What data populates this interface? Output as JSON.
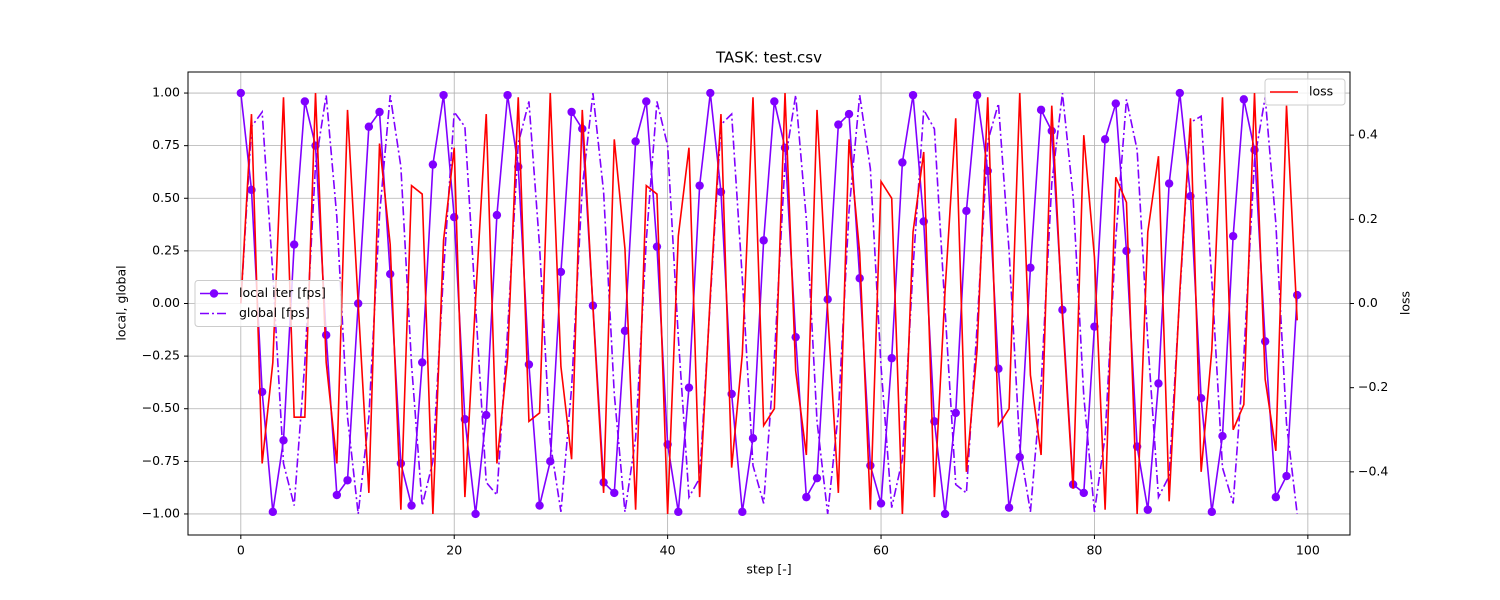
{
  "chart_data": {
    "type": "line",
    "title": "TASK: test.csv",
    "xlabel": "step [-]",
    "ylabel": "local, global",
    "y2label": "loss",
    "x": [
      0,
      1,
      2,
      3,
      4,
      5,
      6,
      7,
      8,
      9,
      10,
      11,
      12,
      13,
      14,
      15,
      16,
      17,
      18,
      19,
      20,
      21,
      22,
      23,
      24,
      25,
      26,
      27,
      28,
      29,
      30,
      31,
      32,
      33,
      34,
      35,
      36,
      37,
      38,
      39,
      40,
      41,
      42,
      43,
      44,
      45,
      46,
      47,
      48,
      49,
      50,
      51,
      52,
      53,
      54,
      55,
      56,
      57,
      58,
      59,
      60,
      61,
      62,
      63,
      64,
      65,
      66,
      67,
      68,
      69,
      70,
      71,
      72,
      73,
      74,
      75,
      76,
      77,
      78,
      79,
      80,
      81,
      82,
      83,
      84,
      85,
      86,
      87,
      88,
      89,
      90,
      91,
      92,
      93,
      94,
      95,
      96,
      97,
      98,
      99
    ],
    "series": [
      {
        "name": "local iter [fps]",
        "color": "#8000ff",
        "marker": "o",
        "linestyle": "solid",
        "values": [
          1,
          0.54,
          -0.42,
          -0.99,
          -0.65,
          0.28,
          0.96,
          0.75,
          -0.15,
          -0.91,
          -0.84,
          0,
          0.84,
          0.91,
          0.14,
          -0.76,
          -0.96,
          -0.28,
          0.66,
          0.99,
          0.41,
          -0.55,
          -1,
          -0.53,
          0.42,
          0.99,
          0.65,
          -0.29,
          -0.96,
          -0.75,
          0.15,
          0.91,
          0.83,
          -0.01,
          -0.85,
          -0.9,
          -0.13,
          0.77,
          0.96,
          0.27,
          -0.67,
          -0.99,
          -0.4,
          0.56,
          1,
          0.53,
          -0.43,
          -0.99,
          -0.64,
          0.3,
          0.96,
          0.74,
          -0.16,
          -0.92,
          -0.83,
          0.02,
          0.85,
          0.9,
          0.12,
          -0.77,
          -0.95,
          -0.26,
          0.67,
          0.99,
          0.39,
          -0.56,
          -1,
          -0.52,
          0.44,
          0.99,
          0.63,
          -0.31,
          -0.97,
          -0.73,
          0.17,
          0.92,
          0.82,
          -0.03,
          -0.86,
          -0.9,
          -0.11,
          0.78,
          0.95,
          0.25,
          -0.68,
          -0.98,
          -0.38,
          0.57,
          1,
          0.51,
          -0.45,
          -0.99,
          -0.63,
          0.32,
          0.97,
          0.73,
          -0.18,
          -0.92,
          -0.82,
          0.04
        ]
      },
      {
        "name": "global [fps]",
        "color": "#8000ff",
        "linestyle": "dashdot",
        "values": [
          0,
          0.84,
          0.91,
          0.14,
          -0.76,
          -0.96,
          -0.28,
          0.66,
          0.99,
          0.41,
          -0.54,
          -1,
          -0.54,
          0.42,
          0.99,
          0.65,
          -0.29,
          -0.96,
          -0.75,
          0.15,
          0.91,
          0.84,
          -0.01,
          -0.85,
          -0.91,
          -0.13,
          0.76,
          0.96,
          0.27,
          -0.66,
          -0.99,
          -0.4,
          0.55,
          1,
          0.53,
          -0.43,
          -0.99,
          -0.64,
          0.3,
          0.96,
          0.75,
          -0.16,
          -0.92,
          -0.83,
          0.02,
          0.85,
          0.9,
          0.12,
          -0.77,
          -0.95,
          -0.26,
          0.67,
          0.99,
          0.4,
          -0.56,
          -1,
          -0.52,
          0.44,
          0.99,
          0.64,
          -0.3,
          -0.97,
          -0.74,
          0.17,
          0.92,
          0.83,
          -0.03,
          -0.86,
          -0.9,
          -0.11,
          0.77,
          0.95,
          0.25,
          -0.68,
          -0.99,
          -0.39,
          0.57,
          1,
          0.51,
          -0.44,
          -0.99,
          -0.63,
          0.31,
          0.97,
          0.73,
          -0.18,
          -0.92,
          -0.82,
          0.04,
          0.86,
          0.89,
          0.11,
          -0.78,
          -0.95,
          -0.25,
          0.68,
          0.98,
          0.38,
          -0.57,
          -1
        ]
      },
      {
        "name": "loss",
        "color": "#ff0000",
        "linestyle": "solid",
        "axis": "y2",
        "values": [
          0,
          0.45,
          -0.38,
          -0.14,
          0.49,
          -0.27,
          -0.27,
          0.5,
          -0.14,
          -0.38,
          0.46,
          0,
          -0.45,
          0.38,
          0.14,
          -0.49,
          0.28,
          0.26,
          -0.5,
          0.15,
          0.37,
          -0.46,
          0.01,
          0.45,
          -0.38,
          -0.13,
          0.49,
          -0.28,
          -0.26,
          0.5,
          -0.15,
          -0.37,
          0.46,
          -0.01,
          -0.45,
          0.39,
          0.13,
          -0.49,
          0.28,
          0.26,
          -0.5,
          0.16,
          0.37,
          -0.46,
          0.02,
          0.45,
          -0.39,
          -0.12,
          0.49,
          -0.29,
          -0.25,
          0.5,
          -0.16,
          -0.36,
          0.46,
          -0.02,
          -0.45,
          0.39,
          0.12,
          -0.49,
          0.29,
          0.25,
          -0.5,
          0.17,
          0.36,
          -0.46,
          0.03,
          0.44,
          -0.4,
          -0.11,
          0.49,
          -0.29,
          -0.25,
          0.5,
          -0.17,
          -0.36,
          0.47,
          -0.03,
          -0.44,
          0.4,
          0.11,
          -0.49,
          0.3,
          0.24,
          -0.5,
          0.17,
          0.35,
          -0.47,
          0.03,
          0.44,
          -0.4,
          -0.11,
          0.49,
          -0.3,
          -0.24,
          0.5,
          -0.18,
          -0.35,
          0.47,
          -0.04
        ]
      }
    ],
    "xlim": [
      -4.95,
      103.95
    ],
    "xticks": [
      0,
      20,
      40,
      60,
      80,
      100
    ],
    "ylim": [
      -1.1,
      1.1
    ],
    "yticks": [
      {
        "value": -1,
        "label": "−1.00"
      },
      {
        "value": -0.75,
        "label": "−0.75"
      },
      {
        "value": -0.5,
        "label": "−0.50"
      },
      {
        "value": -0.25,
        "label": "−0.25"
      },
      {
        "value": 0,
        "label": "0.00"
      },
      {
        "value": 0.25,
        "label": "0.25"
      },
      {
        "value": 0.5,
        "label": "0.50"
      },
      {
        "value": 0.75,
        "label": "0.75"
      },
      {
        "value": 1,
        "label": "1.00"
      }
    ],
    "y2lim": [
      -0.55,
      0.55
    ],
    "y2ticks": [
      {
        "value": -0.4,
        "label": "−0.4"
      },
      {
        "value": -0.2,
        "label": "−0.2"
      },
      {
        "value": 0,
        "label": "0.0"
      },
      0.2,
      0.4
    ],
    "grid": true,
    "legend": "center left",
    "legend2": "upper right"
  }
}
